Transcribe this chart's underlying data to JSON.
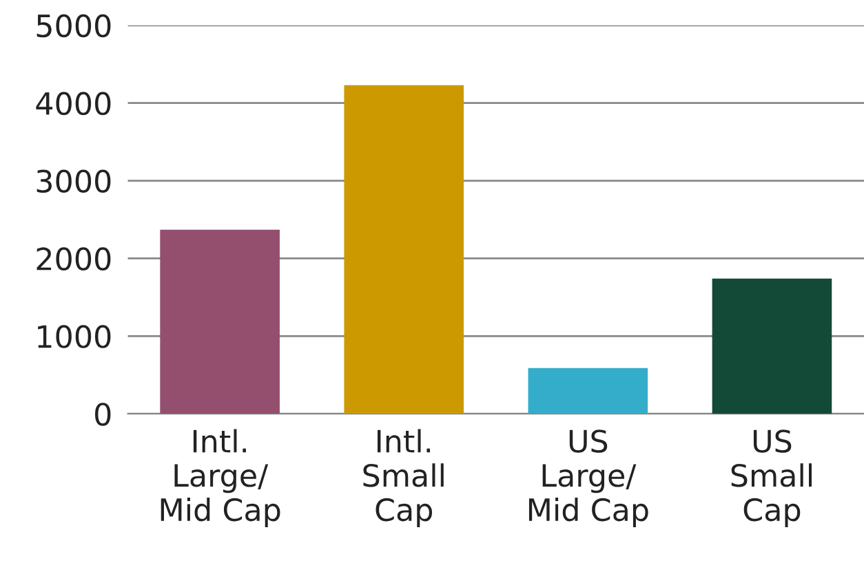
{
  "chart_data": {
    "type": "bar",
    "categories": [
      "Intl.\nLarge/\nMid Cap",
      "Intl.\nSmall\nCap",
      "US\nLarge/\nMid Cap",
      "US\nSmall\nCap"
    ],
    "values": [
      2370,
      4230,
      590,
      1740
    ],
    "colors": [
      "#944f6f",
      "#cc9a00",
      "#33adc9",
      "#134a37"
    ],
    "ylim": [
      0,
      5000
    ],
    "yticks": [
      0,
      1000,
      2000,
      3000,
      4000,
      5000
    ],
    "grid": "y"
  }
}
